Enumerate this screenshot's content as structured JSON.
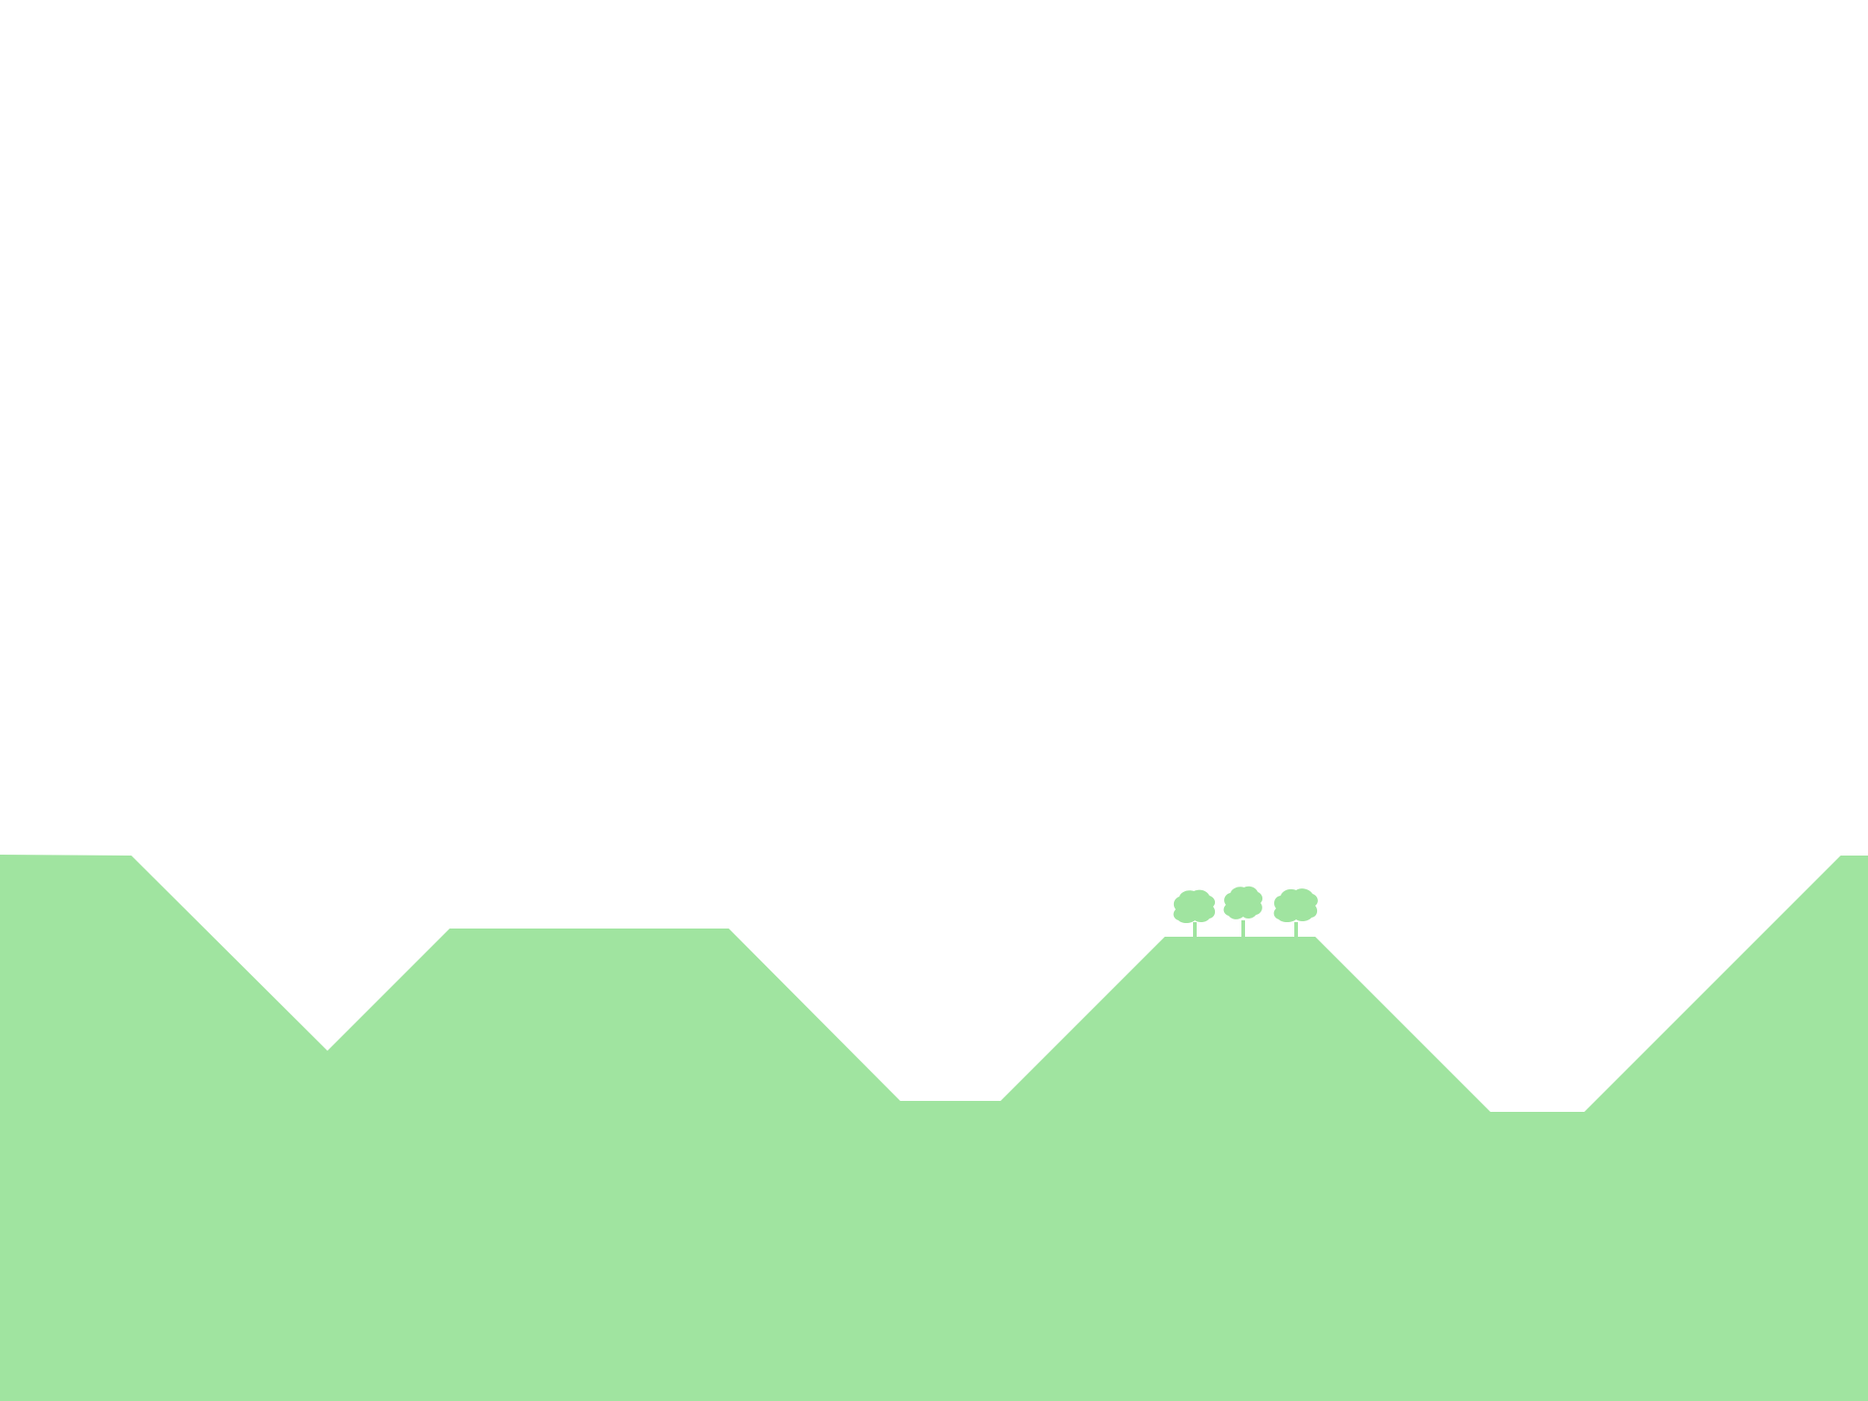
{
  "scene": {
    "type": "side-scrolling terrain",
    "background_color": "#ffffff",
    "terrain_color": "#a0e4a0",
    "tree_color": "#a0e4a0",
    "objects": {
      "terrain": "terrain-hills",
      "trees": [
        "tree-icon",
        "tree-icon",
        "tree-icon"
      ]
    }
  }
}
